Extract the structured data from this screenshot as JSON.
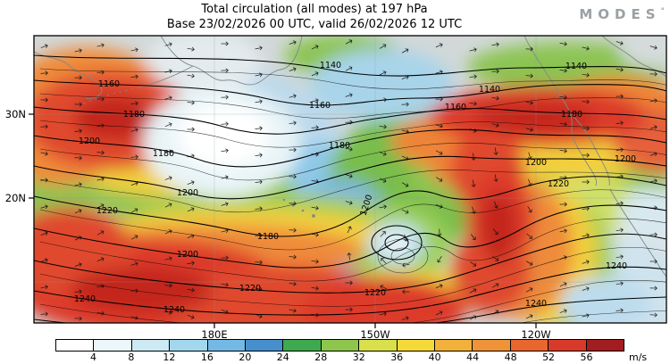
{
  "header": {
    "title": "Total circulation (all modes) at 197 hPa",
    "subtitle": "Base 23/02/2026 00 UTC, valid 26/02/2026 12 UTC",
    "brand": "MODES",
    "brand_degree": "°"
  },
  "map": {
    "y_tick_labels": [
      "30N",
      "20N"
    ],
    "x_tick_labels": [
      "180E",
      "150W",
      "120W"
    ],
    "contour_values": [
      "1140",
      "1160",
      "1180",
      "1200",
      "1220",
      "1240"
    ]
  },
  "colorbar": {
    "tick_labels": [
      "4",
      "8",
      "12",
      "16",
      "20",
      "24",
      "28",
      "32",
      "36",
      "40",
      "44",
      "48",
      "52",
      "56"
    ],
    "unit": "m/s",
    "segment_colors": [
      "#ffffff",
      "#ebf7fa",
      "#cdeaf4",
      "#a3d7ee",
      "#74b9e6",
      "#478fcc",
      "#3fa94f",
      "#8ec64d",
      "#d9e04b",
      "#f5d93b",
      "#f2b13b",
      "#ef9338",
      "#e9662f",
      "#d83a2a",
      "#a21d20"
    ]
  },
  "chart_data": {
    "type": "heatmap",
    "title": "Total circulation (all modes) at 197 hPa",
    "subtitle": "Base 23/02/2026 00 UTC, valid 26/02/2026 12 UTC",
    "variable": "Total circulation (all modes)",
    "pressure_level": "197 hPa",
    "base_time": "23/02/2026 00 UTC",
    "valid_time": "26/02/2026 12 UTC",
    "unit": "m/s",
    "colorbar_ticks": [
      4,
      8,
      12,
      16,
      20,
      24,
      28,
      32,
      36,
      40,
      44,
      48,
      52,
      56
    ],
    "x_axis_ticks": [
      "180E",
      "150W",
      "120W"
    ],
    "y_axis_ticks": [
      "30N",
      "20N"
    ],
    "contour_levels_labeled": [
      1140,
      1160,
      1180,
      1200,
      1220,
      1240
    ],
    "overlays": [
      "filled wind-speed shading",
      "streamlines with arrows",
      "labeled height contours",
      "coastlines"
    ],
    "legend_position": "bottom"
  }
}
